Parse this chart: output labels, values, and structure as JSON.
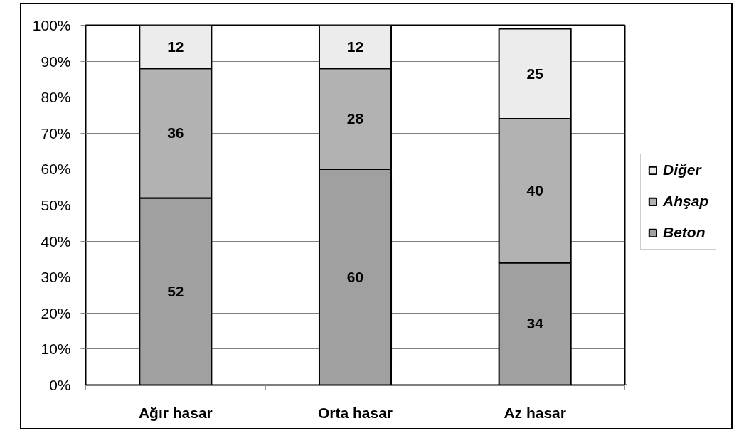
{
  "chart_data": {
    "type": "bar",
    "stacked": true,
    "categories": [
      "Ağır hasar",
      "Orta hasar",
      "Az hasar"
    ],
    "series": [
      {
        "name": "Beton",
        "color": "#a0a0a0",
        "values": [
          52,
          60,
          34
        ]
      },
      {
        "name": "Ahşap",
        "color": "#b2b2b2",
        "values": [
          36,
          28,
          40
        ]
      },
      {
        "name": "Diğer",
        "color": "#ececec",
        "values": [
          12,
          12,
          25
        ]
      }
    ],
    "ylim": [
      0,
      100
    ],
    "yticks": [
      {
        "value": 0,
        "label": "0%"
      },
      {
        "value": 10,
        "label": "10%"
      },
      {
        "value": 20,
        "label": "20%"
      },
      {
        "value": 30,
        "label": "30%"
      },
      {
        "value": 40,
        "label": "40%"
      },
      {
        "value": 50,
        "label": "50%"
      },
      {
        "value": 60,
        "label": "60%"
      },
      {
        "value": 70,
        "label": "70%"
      },
      {
        "value": 80,
        "label": "80%"
      },
      {
        "value": 90,
        "label": "90%"
      },
      {
        "value": 100,
        "label": "100%"
      }
    ],
    "grid": "y",
    "legend": "right",
    "data_labels": true
  }
}
